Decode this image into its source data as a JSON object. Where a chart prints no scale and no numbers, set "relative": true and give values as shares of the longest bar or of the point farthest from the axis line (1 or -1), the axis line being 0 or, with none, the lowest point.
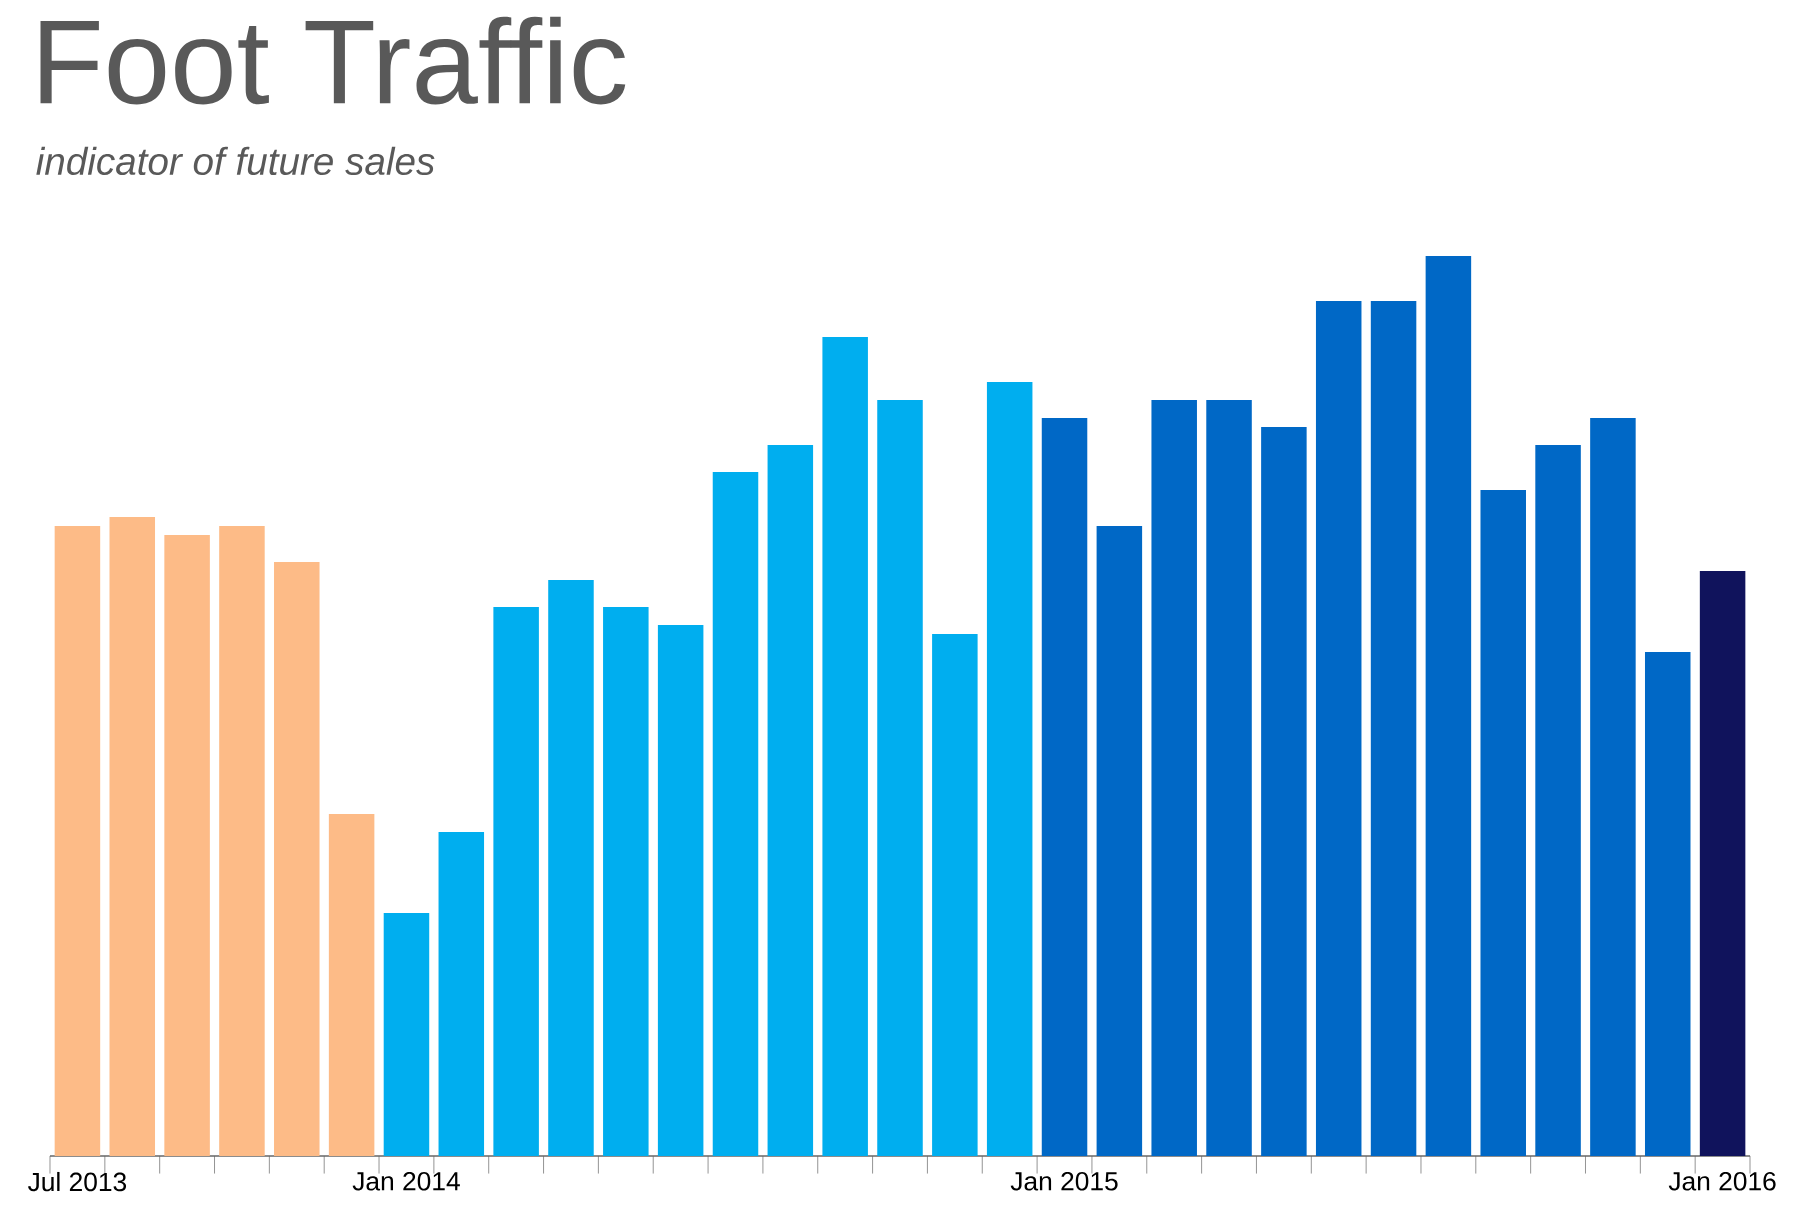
{
  "chart_data": {
    "type": "bar",
    "title": "Foot Traffic",
    "subtitle": "indicator of future sales",
    "categories": [
      "Jul 2013",
      null,
      null,
      null,
      null,
      null,
      "Jan 2014",
      null,
      null,
      null,
      null,
      null,
      null,
      null,
      null,
      null,
      null,
      null,
      "Jan 2015",
      null,
      null,
      null,
      null,
      null,
      null,
      null,
      null,
      null,
      null,
      null,
      "Jan 2016"
    ],
    "values": [
      0.7,
      0.71,
      0.69,
      0.7,
      0.66,
      0.38,
      0.27,
      0.36,
      0.61,
      0.64,
      0.61,
      0.59,
      0.76,
      0.79,
      0.91,
      0.84,
      0.58,
      0.86,
      0.82,
      0.7,
      0.84,
      0.84,
      0.81,
      0.95,
      0.95,
      1,
      0.74,
      0.79,
      0.82,
      0.56,
      0.65
    ],
    "colors": [
      "#fdbb87",
      "#fdbb87",
      "#fdbb87",
      "#fdbb87",
      "#fdbb87",
      "#fdbb87",
      "#00aeef",
      "#00aeef",
      "#00aeef",
      "#00aeef",
      "#00aeef",
      "#00aeef",
      "#00aeef",
      "#00aeef",
      "#00aeef",
      "#00aeef",
      "#00aeef",
      "#00aeef",
      "#0068c6",
      "#0068c6",
      "#0068c6",
      "#0068c6",
      "#0068c6",
      "#0068c6",
      "#0068c6",
      "#0068c6",
      "#0068c6",
      "#0068c6",
      "#0068c6",
      "#0068c6",
      "#10135c"
    ],
    "relative": true
  }
}
